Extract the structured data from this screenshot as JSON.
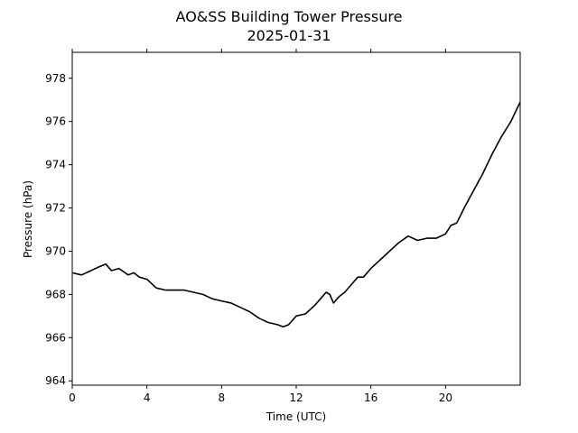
{
  "chart_data": {
    "type": "line",
    "title": "AO&SS Building Tower Pressure",
    "subtitle": "2025-01-31",
    "xlabel": "Time (UTC)",
    "ylabel": "Pressure (hPa)",
    "xlim": [
      0,
      24
    ],
    "ylim": [
      963.8,
      979.2
    ],
    "xticks": [
      0,
      4,
      8,
      12,
      16,
      20
    ],
    "yticks": [
      964,
      966,
      968,
      970,
      972,
      974,
      976,
      978
    ],
    "grid": false,
    "legend": "none",
    "line_color": "#000000",
    "series": [
      {
        "x": [
          0,
          0.5,
          1,
          1.5,
          1.8,
          2.1,
          2.5,
          3,
          3.3,
          3.6,
          4,
          4.5,
          5,
          5.5,
          6,
          6.5,
          7,
          7.5,
          8,
          8.5,
          9,
          9.5,
          10,
          10.5,
          11,
          11.3,
          11.6,
          12,
          12.5,
          13,
          13.3,
          13.6,
          13.8,
          14,
          14.3,
          14.6,
          15,
          15.3,
          15.6,
          16,
          16.5,
          17,
          17.5,
          18,
          18.5,
          19,
          19.5,
          20,
          20.3,
          20.6,
          21,
          21.5,
          22,
          22.5,
          23,
          23.5,
          24
        ],
        "y": [
          969.0,
          968.9,
          969.1,
          969.3,
          969.4,
          969.1,
          969.2,
          968.9,
          969.0,
          968.8,
          968.7,
          968.3,
          968.2,
          968.2,
          968.2,
          968.1,
          968.0,
          967.8,
          967.7,
          967.6,
          967.4,
          967.2,
          966.9,
          966.7,
          966.6,
          966.5,
          966.6,
          967.0,
          967.1,
          967.5,
          967.8,
          968.1,
          968.0,
          967.6,
          967.9,
          968.1,
          968.5,
          968.8,
          968.8,
          969.2,
          969.6,
          970.0,
          970.4,
          970.7,
          970.5,
          970.6,
          970.6,
          970.8,
          971.2,
          971.3,
          972.0,
          972.8,
          973.6,
          974.5,
          975.3,
          976.0,
          976.9
        ]
      }
    ]
  }
}
